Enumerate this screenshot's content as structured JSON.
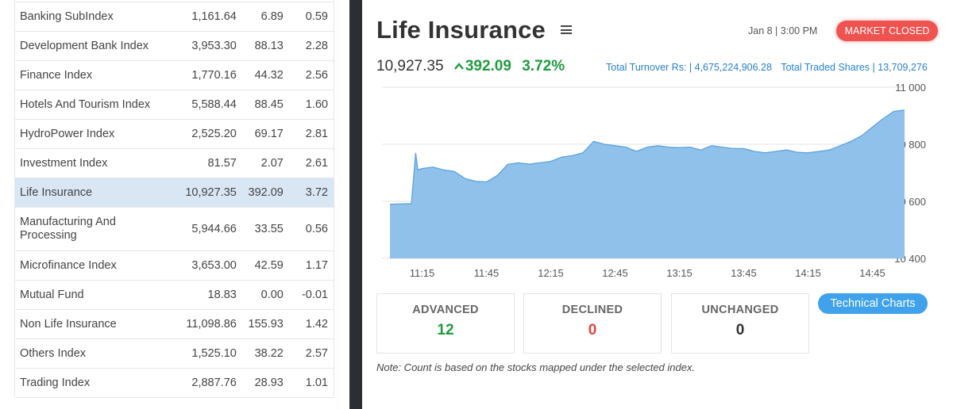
{
  "index_table": {
    "rows": [
      {
        "name": "Banking SubIndex",
        "value": "1,161.64",
        "change": "6.89",
        "pct": "0.59",
        "dir": "pos"
      },
      {
        "name": "Development Bank Index",
        "value": "3,953.30",
        "change": "88.13",
        "pct": "2.28",
        "dir": "pos"
      },
      {
        "name": "Finance Index",
        "value": "1,770.16",
        "change": "44.32",
        "pct": "2.56",
        "dir": "pos"
      },
      {
        "name": "Hotels And Tourism Index",
        "value": "5,588.44",
        "change": "88.45",
        "pct": "1.60",
        "dir": "pos"
      },
      {
        "name": "HydroPower Index",
        "value": "2,525.20",
        "change": "69.17",
        "pct": "2.81",
        "dir": "pos"
      },
      {
        "name": "Investment Index",
        "value": "81.57",
        "change": "2.07",
        "pct": "2.61",
        "dir": "pos"
      },
      {
        "name": "Life Insurance",
        "value": "10,927.35",
        "change": "392.09",
        "pct": "3.72",
        "dir": "pos",
        "selected": true
      },
      {
        "name": "Manufacturing And Processing",
        "value": "5,944.66",
        "change": "33.55",
        "pct": "0.56",
        "dir": "pos",
        "tall": true
      },
      {
        "name": "Microfinance Index",
        "value": "3,653.00",
        "change": "42.59",
        "pct": "1.17",
        "dir": "pos"
      },
      {
        "name": "Mutual Fund",
        "value": "18.83",
        "change": "0.00",
        "pct": "-0.01",
        "dir": "neg"
      },
      {
        "name": "Non Life Insurance",
        "value": "11,098.86",
        "change": "155.93",
        "pct": "1.42",
        "dir": "pos"
      },
      {
        "name": "Others Index",
        "value": "1,525.10",
        "change": "38.22",
        "pct": "2.57",
        "dir": "pos"
      },
      {
        "name": "Trading Index",
        "value": "2,887.76",
        "change": "28.93",
        "pct": "1.01",
        "dir": "pos"
      }
    ]
  },
  "detail": {
    "title": "Life Insurance",
    "menu_icon": "hamburger-menu-icon",
    "datetime": "Jan 8 | 3:00 PM",
    "market_status": "MARKET CLOSED",
    "price": "10,927.35",
    "change_arrow": "^",
    "change": "392.09",
    "pct": "3.72%",
    "turnover": "Total Turnover Rs: | 4,675,224,906.28",
    "traded_shares": "Total Traded Shares | 13,709,276"
  },
  "chart_data": {
    "type": "area",
    "y_ticks": [
      "11 000",
      "10 800",
      "10 600",
      "10 400"
    ],
    "ylim": [
      10400,
      11000
    ],
    "x_ticks": [
      "11:15",
      "11:45",
      "12:15",
      "12:45",
      "13:15",
      "13:45",
      "14:15",
      "14:45"
    ],
    "series": [
      {
        "x": [
          "11:00",
          "11:10",
          "11:11",
          "11:12",
          "11:13",
          "11:15",
          "11:20",
          "11:25",
          "11:30",
          "11:35",
          "11:40",
          "11:45",
          "11:50",
          "11:55",
          "12:00",
          "12:05",
          "12:10",
          "12:15",
          "12:20",
          "12:25",
          "12:30",
          "12:35",
          "12:40",
          "12:45",
          "12:50",
          "12:55",
          "13:00",
          "13:05",
          "13:10",
          "13:15",
          "13:20",
          "13:25",
          "13:30",
          "13:35",
          "13:40",
          "13:45",
          "13:50",
          "13:55",
          "14:00",
          "14:05",
          "14:10",
          "14:15",
          "14:20",
          "14:25",
          "14:30",
          "14:35",
          "14:40",
          "14:45",
          "14:50",
          "14:55",
          "15:00"
        ],
        "values": [
          10590,
          10592,
          10680,
          10770,
          10710,
          10715,
          10720,
          10710,
          10705,
          10680,
          10670,
          10668,
          10690,
          10730,
          10735,
          10730,
          10735,
          10740,
          10755,
          10760,
          10770,
          10810,
          10800,
          10795,
          10790,
          10775,
          10790,
          10795,
          10790,
          10788,
          10790,
          10780,
          10795,
          10790,
          10785,
          10785,
          10775,
          10770,
          10775,
          10780,
          10772,
          10770,
          10775,
          10780,
          10795,
          10810,
          10830,
          10860,
          10890,
          10915,
          10920
        ]
      }
    ],
    "color": "#8fc1ea",
    "line_color": "#5ba3dc",
    "grid": true
  },
  "stats": {
    "advanced_label": "ADVANCED",
    "advanced_value": "12",
    "declined_label": "DECLINED",
    "declined_value": "0",
    "unchanged_label": "UNCHANGED",
    "unchanged_value": "0"
  },
  "technical_charts_label": "Technical Charts",
  "note": "Note: Count is based on the stocks mapped under the selected index."
}
